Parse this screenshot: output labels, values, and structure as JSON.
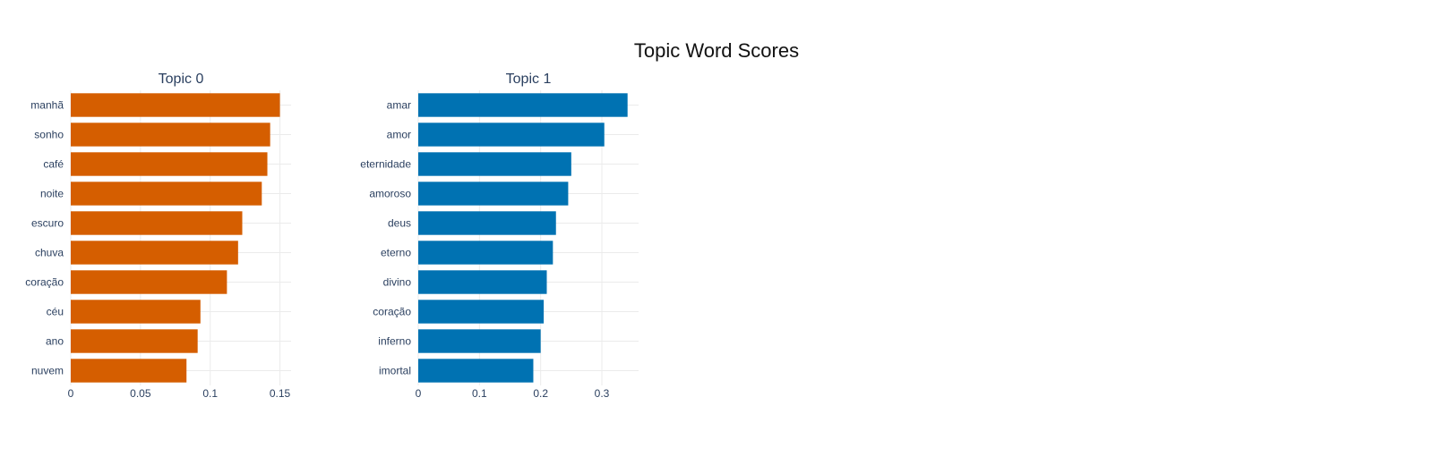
{
  "title": "Topic Word Scores",
  "chart_data": [
    {
      "type": "bar",
      "orientation": "horizontal",
      "title": "Topic 0",
      "color": "#D55E00",
      "categories": [
        "manhã",
        "sonho",
        "café",
        "noite",
        "escuro",
        "chuva",
        "coração",
        "céu",
        "ano",
        "nuvem"
      ],
      "values": [
        0.15,
        0.143,
        0.141,
        0.137,
        0.123,
        0.12,
        0.112,
        0.093,
        0.091,
        0.083
      ],
      "xlim": [
        0,
        0.158
      ],
      "xticks": [
        0,
        0.05,
        0.1,
        0.15
      ],
      "xtick_labels": [
        "0",
        "0.05",
        "0.1",
        "0.15"
      ],
      "grid": true
    },
    {
      "type": "bar",
      "orientation": "horizontal",
      "title": "Topic 1",
      "color": "#0072B2",
      "categories": [
        "amar",
        "amor",
        "eternidade",
        "amoroso",
        "deus",
        "eterno",
        "divino",
        "coração",
        "inferno",
        "imortal"
      ],
      "values": [
        0.342,
        0.304,
        0.25,
        0.245,
        0.225,
        0.22,
        0.21,
        0.205,
        0.2,
        0.188
      ],
      "xlim": [
        0,
        0.36
      ],
      "xticks": [
        0,
        0.1,
        0.2,
        0.3
      ],
      "xtick_labels": [
        "0",
        "0.1",
        "0.2",
        "0.3"
      ],
      "grid": true
    }
  ]
}
